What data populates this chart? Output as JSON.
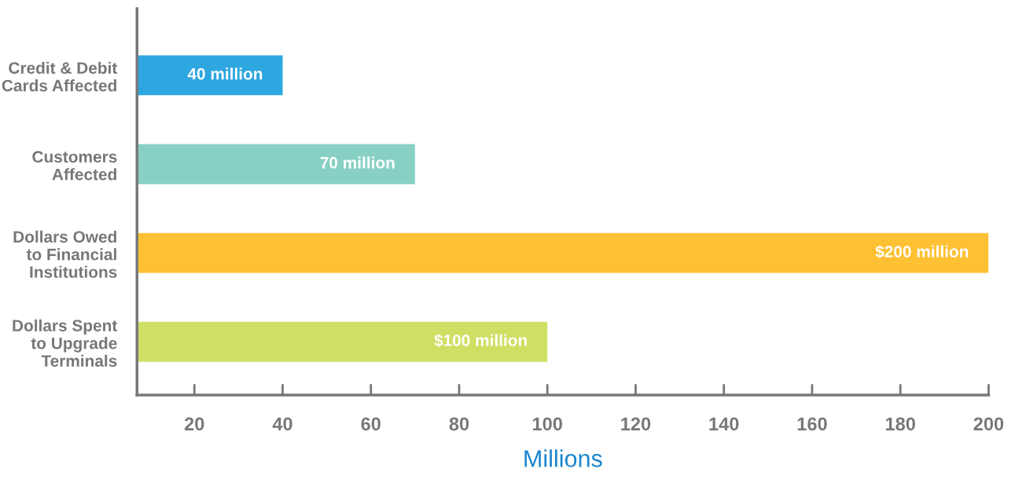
{
  "chart_data": {
    "type": "bar",
    "orientation": "horizontal",
    "categories": [
      "Credit & Debit\nCards Affected",
      "Customers\nAffected",
      "Dollars Owed\nto Financial\nInstitutions",
      "Dollars Spent\nto Upgrade\nTerminals"
    ],
    "values": [
      40,
      70,
      200,
      100
    ],
    "colors": [
      "#2ea7e0",
      "#88d0c4",
      "#fdc133",
      "#cfdf63"
    ],
    "value_labels": [
      "40 million",
      "70 million",
      "$200 million",
      "$100 million"
    ],
    "xlabel": "Millions",
    "xlim": [
      7,
      200
    ],
    "xticks": [
      20,
      40,
      60,
      80,
      100,
      120,
      140,
      160,
      180,
      200
    ],
    "grid": false,
    "legend": false
  }
}
